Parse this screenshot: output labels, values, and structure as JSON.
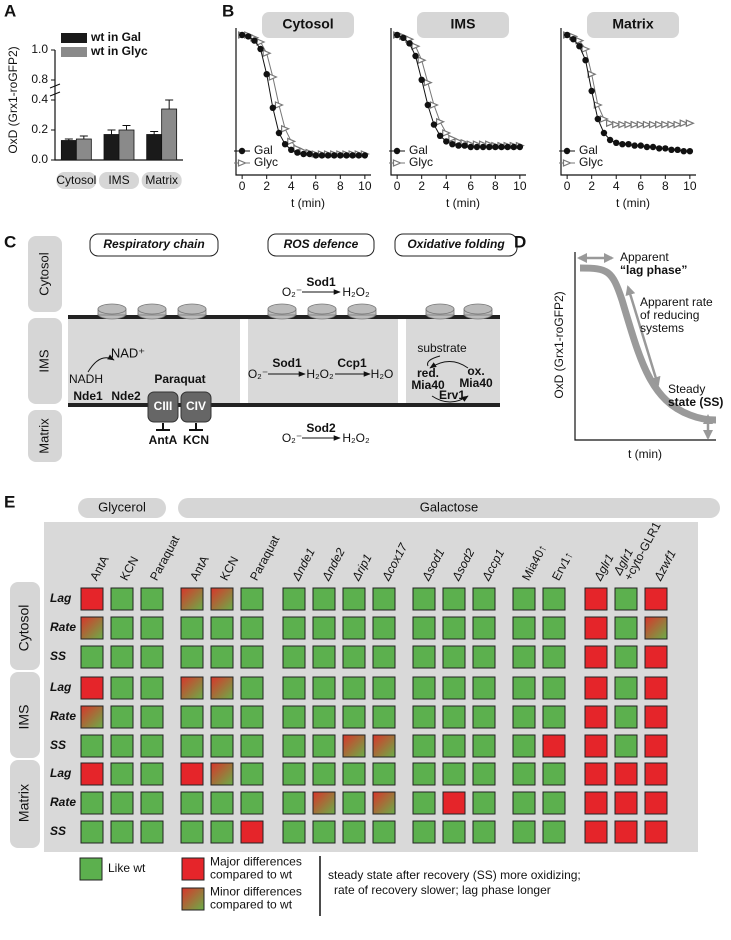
{
  "panel_labels": [
    "A",
    "B",
    "C",
    "D",
    "E"
  ],
  "chart_data": [
    {
      "type": "bar",
      "ylabel": "OxD (Grx1-roGFP2)",
      "categories": [
        "Cytosol",
        "IMS",
        "Matrix"
      ],
      "series": [
        {
          "name": "wt in Gal",
          "color": "#1a1a1a",
          "values": [
            0.13,
            0.17,
            0.17
          ],
          "errors": [
            0.01,
            0.03,
            0.02
          ]
        },
        {
          "name": "wt in Glyc",
          "color": "#8a8a8a",
          "values": [
            0.14,
            0.2,
            0.34
          ],
          "errors": [
            0.02,
            0.03,
            0.06
          ]
        }
      ],
      "ylim": [
        0,
        1
      ],
      "yticks": [
        {
          "value": 0,
          "label": "0.0"
        },
        0.2,
        0.4,
        0.8,
        {
          "value": 1,
          "label": "1.0"
        }
      ],
      "axis_break": [
        0.4,
        0.8
      ]
    },
    {
      "type": "line",
      "title": "Cytosol",
      "xlabel": "t (min)",
      "x": [
        0,
        0.5,
        1,
        1.5,
        2,
        2.5,
        3,
        3.5,
        4,
        4.5,
        5,
        5.5,
        6,
        6.5,
        7,
        7.5,
        8,
        8.5,
        9,
        9.5,
        10
      ],
      "series": [
        {
          "name": "Gal",
          "color": "#111111",
          "marker": "circle",
          "values": [
            1.0,
            0.99,
            0.96,
            0.9,
            0.72,
            0.48,
            0.3,
            0.22,
            0.18,
            0.16,
            0.15,
            0.15,
            0.14,
            0.14,
            0.14,
            0.14,
            0.14,
            0.14,
            0.14,
            0.14,
            0.14
          ]
        },
        {
          "name": "Glyc",
          "color": "#777777",
          "marker": "triangle",
          "values": [
            1.0,
            1.0,
            0.98,
            0.95,
            0.87,
            0.7,
            0.5,
            0.33,
            0.24,
            0.19,
            0.17,
            0.16,
            0.15,
            0.15,
            0.15,
            0.15,
            0.15,
            0.15,
            0.15,
            0.15,
            0.15
          ]
        }
      ],
      "xlim": [
        -0.5,
        10.5
      ],
      "xticks": [
        0,
        2,
        4,
        6,
        8,
        10
      ],
      "ylim": [
        0,
        1.05
      ]
    },
    {
      "type": "line",
      "title": "IMS",
      "xlabel": "t (min)",
      "x": [
        0,
        0.5,
        1,
        1.5,
        2,
        2.5,
        3,
        3.5,
        4,
        4.5,
        5,
        5.5,
        6,
        6.5,
        7,
        7.5,
        8,
        8.5,
        9,
        9.5,
        10
      ],
      "series": [
        {
          "name": "Gal",
          "color": "#111111",
          "marker": "circle",
          "values": [
            1.0,
            0.98,
            0.94,
            0.85,
            0.68,
            0.5,
            0.36,
            0.28,
            0.24,
            0.22,
            0.21,
            0.21,
            0.2,
            0.2,
            0.2,
            0.2,
            0.2,
            0.2,
            0.2,
            0.2,
            0.2
          ]
        },
        {
          "name": "Glyc",
          "color": "#777777",
          "marker": "triangle",
          "values": [
            1.0,
            0.99,
            0.97,
            0.92,
            0.82,
            0.66,
            0.5,
            0.38,
            0.3,
            0.26,
            0.24,
            0.23,
            0.22,
            0.22,
            0.22,
            0.22,
            0.21,
            0.21,
            0.21,
            0.21,
            0.21
          ]
        }
      ],
      "xlim": [
        -0.5,
        10.5
      ],
      "xticks": [
        0,
        2,
        4,
        6,
        8,
        10
      ],
      "ylim": [
        0,
        1.05
      ]
    },
    {
      "type": "line",
      "title": "Matrix",
      "xlabel": "t (min)",
      "x": [
        0,
        0.5,
        1,
        1.5,
        2,
        2.5,
        3,
        3.5,
        4,
        4.5,
        5,
        5.5,
        6,
        6.5,
        7,
        7.5,
        8,
        8.5,
        9,
        9.5,
        10
      ],
      "series": [
        {
          "name": "Gal",
          "color": "#111111",
          "marker": "circle",
          "values": [
            1.0,
            0.97,
            0.92,
            0.82,
            0.6,
            0.4,
            0.3,
            0.25,
            0.23,
            0.22,
            0.22,
            0.21,
            0.21,
            0.2,
            0.2,
            0.19,
            0.19,
            0.18,
            0.18,
            0.17,
            0.17
          ]
        },
        {
          "name": "Glyc",
          "color": "#777777",
          "marker": "triangle",
          "values": [
            1.0,
            0.99,
            0.96,
            0.9,
            0.72,
            0.5,
            0.4,
            0.37,
            0.36,
            0.36,
            0.36,
            0.36,
            0.36,
            0.36,
            0.36,
            0.36,
            0.36,
            0.36,
            0.36,
            0.37,
            0.37
          ]
        }
      ],
      "xlim": [
        -0.5,
        10.5
      ],
      "xticks": [
        0,
        2,
        4,
        6,
        8,
        10
      ],
      "ylim": [
        0,
        1.05
      ]
    }
  ],
  "diagram_c": {
    "compartments": [
      "Cytosol",
      "IMS",
      "Matrix"
    ],
    "modules": [
      "Respiratory chain",
      "ROS defence",
      "Oxidative folding"
    ],
    "cytosol_reaction": {
      "substrate": "O₂⁻",
      "enzyme": "Sod1",
      "product": "H₂O₂"
    },
    "respiratory": {
      "nadh": "NADH",
      "nad": "NAD⁺",
      "nde1": "Nde1",
      "nde2": "Nde2",
      "paraquat": "Paraquat",
      "complexes": [
        "CIII",
        "CIV"
      ],
      "inhibitors": [
        "AntA",
        "KCN"
      ]
    },
    "ims_ros": {
      "substrate": "O₂⁻",
      "enzyme1": "Sod1",
      "intermediate": "H₂O₂",
      "enzyme2": "Ccp1",
      "product": "H₂O"
    },
    "folding": {
      "substrate": "substrate",
      "reduced": [
        "red.",
        "Mia40"
      ],
      "oxidized": [
        "ox.",
        "Mia40"
      ],
      "enzyme": "Erv1"
    },
    "matrix_reaction": {
      "substrate": "O₂⁻",
      "enzyme": "Sod2",
      "product": "H₂O₂"
    }
  },
  "schematic_d": {
    "ylabel": "OxD (Grx1-roGFP2)",
    "xlabel": "t (min)",
    "lag": [
      "Apparent",
      "“lag phase”"
    ],
    "rate": [
      "Apparent rate",
      "of reducing",
      "systems"
    ],
    "steady": [
      "Steady",
      "state (SS)"
    ]
  },
  "heatmap": {
    "media": [
      "Glycerol",
      "Galactose"
    ],
    "column_groups": [
      [
        {
          "lines": [
            "AntA"
          ]
        },
        {
          "lines": [
            "KCN"
          ]
        },
        {
          "lines": [
            "Paraquat"
          ]
        }
      ],
      [
        {
          "lines": [
            "AntA"
          ]
        },
        {
          "lines": [
            "KCN"
          ]
        },
        {
          "lines": [
            "Paraquat"
          ]
        }
      ],
      [
        {
          "lines": [
            "Δnde1"
          ]
        },
        {
          "lines": [
            "Δnde2"
          ]
        },
        {
          "lines": [
            "Δrip1"
          ]
        },
        {
          "lines": [
            "Δcox17"
          ]
        }
      ],
      [
        {
          "lines": [
            "Δsod1"
          ]
        },
        {
          "lines": [
            "Δsod2"
          ]
        },
        {
          "lines": [
            "Δccp1"
          ]
        }
      ],
      [
        {
          "lines": [
            "Mia40↑"
          ]
        },
        {
          "lines": [
            "Erv1↑"
          ]
        }
      ],
      [
        {
          "lines": [
            "Δglr1"
          ]
        },
        {
          "lines": [
            "Δglr1",
            "+cyto-GLR1"
          ]
        },
        {
          "lines": [
            "Δzwf1"
          ]
        }
      ]
    ],
    "compartments": [
      {
        "name": "Cytosol",
        "rows": [
          {
            "param": "Lag",
            "cells": [
              1,
              0,
              0,
              2,
              2,
              0,
              0,
              0,
              0,
              0,
              0,
              0,
              0,
              0,
              0,
              1,
              0,
              1
            ]
          },
          {
            "param": "Rate",
            "cells": [
              2,
              0,
              0,
              0,
              0,
              0,
              0,
              0,
              0,
              0,
              0,
              0,
              0,
              0,
              0,
              1,
              0,
              2
            ]
          },
          {
            "param": "SS",
            "cells": [
              0,
              0,
              0,
              0,
              0,
              0,
              0,
              0,
              0,
              0,
              0,
              0,
              0,
              0,
              0,
              1,
              0,
              1
            ]
          }
        ]
      },
      {
        "name": "IMS",
        "rows": [
          {
            "param": "Lag",
            "cells": [
              1,
              0,
              0,
              2,
              2,
              0,
              0,
              0,
              0,
              0,
              0,
              0,
              0,
              0,
              0,
              1,
              0,
              1
            ]
          },
          {
            "param": "Rate",
            "cells": [
              2,
              0,
              0,
              0,
              0,
              0,
              0,
              0,
              0,
              0,
              0,
              0,
              0,
              0,
              0,
              1,
              0,
              1
            ]
          },
          {
            "param": "SS",
            "cells": [
              0,
              0,
              0,
              0,
              0,
              0,
              0,
              0,
              2,
              2,
              0,
              0,
              0,
              0,
              1,
              1,
              0,
              1
            ]
          }
        ]
      },
      {
        "name": "Matrix",
        "rows": [
          {
            "param": "Lag",
            "cells": [
              1,
              0,
              0,
              1,
              2,
              0,
              0,
              0,
              0,
              0,
              0,
              0,
              0,
              0,
              0,
              1,
              1,
              1
            ]
          },
          {
            "param": "Rate",
            "cells": [
              0,
              0,
              0,
              0,
              0,
              0,
              0,
              2,
              0,
              2,
              0,
              1,
              0,
              0,
              0,
              1,
              1,
              1
            ]
          },
          {
            "param": "SS",
            "cells": [
              0,
              0,
              0,
              0,
              0,
              1,
              0,
              0,
              0,
              0,
              0,
              0,
              0,
              0,
              0,
              1,
              1,
              1
            ]
          }
        ]
      }
    ],
    "legend": [
      {
        "colors": [
          "#5cb04e"
        ],
        "lines": [
          "Like wt"
        ]
      },
      {
        "colors": [
          "#e5252a"
        ],
        "lines": [
          "Major differences",
          "compared to wt"
        ]
      },
      {
        "colors": [
          "#d9352b",
          "#6aae48"
        ],
        "lines": [
          "Minor differences",
          "compared to wt"
        ]
      }
    ],
    "note": [
      "steady state after recovery (SS) more oxidizing;",
      "rate of recovery slower; lag phase longer"
    ]
  }
}
